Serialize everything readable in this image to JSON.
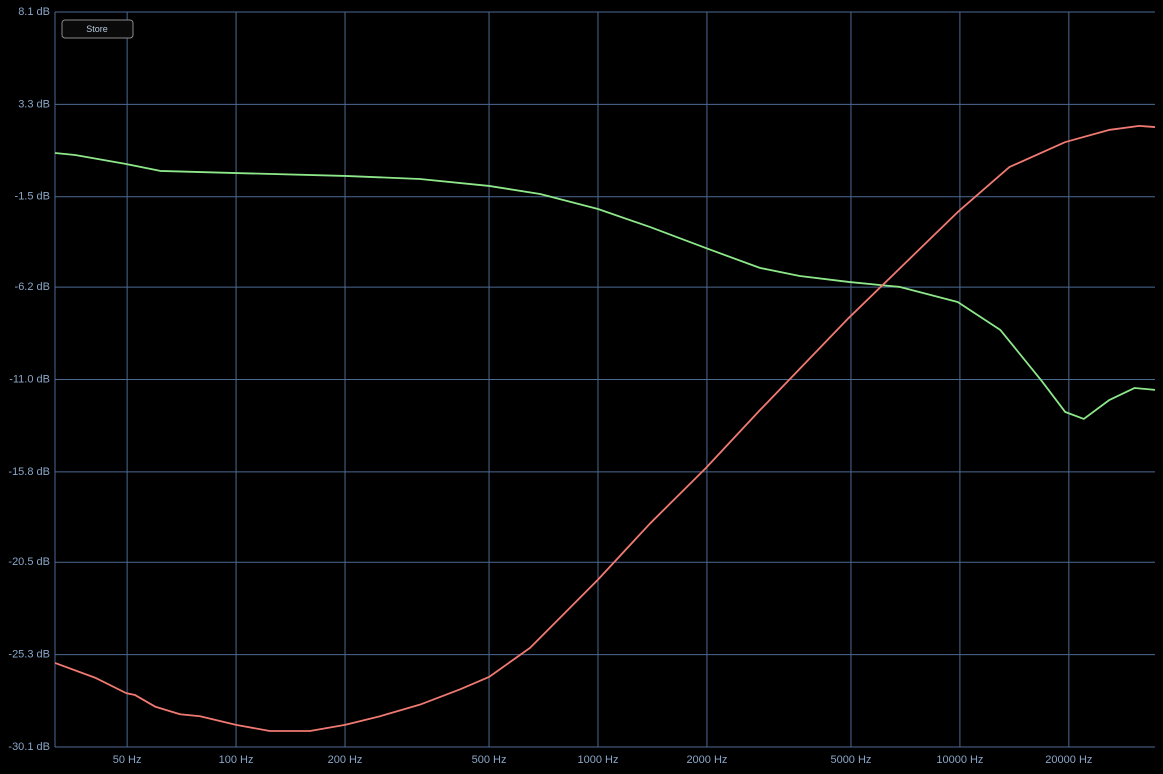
{
  "controls": {
    "store_button": "Store"
  },
  "chart_data": {
    "type": "line",
    "xscale": "log",
    "grid": true,
    "xlim": [
      31.6,
      34600
    ],
    "ylim": [
      -30.1,
      8.1
    ],
    "xticks": [
      {
        "value": 50,
        "label": "50 Hz"
      },
      {
        "value": 100,
        "label": "100 Hz"
      },
      {
        "value": 200,
        "label": "200 Hz"
      },
      {
        "value": 500,
        "label": "500 Hz"
      },
      {
        "value": 1000,
        "label": "1000 Hz"
      },
      {
        "value": 2000,
        "label": "2000 Hz"
      },
      {
        "value": 5000,
        "label": "5000 Hz"
      },
      {
        "value": 10000,
        "label": "10000 Hz"
      },
      {
        "value": 20000,
        "label": "20000 Hz"
      }
    ],
    "yticks": [
      {
        "value": 8.1,
        "label": "8.1 dB"
      },
      {
        "value": 3.3,
        "label": "3.3 dB"
      },
      {
        "value": -1.5,
        "label": "-1.5 dB"
      },
      {
        "value": -6.2,
        "label": "-6.2 dB"
      },
      {
        "value": -11.0,
        "label": "-11.0 dB"
      },
      {
        "value": -15.8,
        "label": "-15.8 dB"
      },
      {
        "value": -20.5,
        "label": "-20.5 dB"
      },
      {
        "value": -25.3,
        "label": "-25.3 dB"
      },
      {
        "value": -30.1,
        "label": "-30.1 dB"
      }
    ],
    "series": [
      {
        "color": "#8ee88a",
        "x": [
          31.6,
          35.9,
          49.7,
          61.7,
          100,
          200,
          322,
          500,
          692,
          1000,
          1391,
          1987,
          2800,
          3610,
          4930,
          6830,
          9860,
          12940,
          16740,
          19550,
          22000,
          25900,
          30400,
          34600
        ],
        "values": [
          0.77,
          0.67,
          0.2,
          -0.16,
          -0.27,
          -0.42,
          -0.58,
          -0.94,
          -1.36,
          -2.14,
          -3.07,
          -4.17,
          -5.2,
          -5.62,
          -5.93,
          -6.19,
          -6.97,
          -8.43,
          -11.02,
          -12.69,
          -13.05,
          -12.06,
          -11.44,
          -11.54
        ]
      },
      {
        "color": "#f07a72",
        "x": [
          31.6,
          40.8,
          49.7,
          52.6,
          59.7,
          70.0,
          79.5,
          100,
          124,
          160,
          200,
          250,
          322,
          416,
          500,
          649,
          1000,
          1390,
          1987,
          2800,
          4930,
          9860,
          13700,
          19550,
          25800,
          31300,
          34600
        ],
        "values": [
          -25.73,
          -26.5,
          -27.3,
          -27.4,
          -28.0,
          -28.4,
          -28.5,
          -28.95,
          -29.27,
          -29.27,
          -28.95,
          -28.5,
          -27.9,
          -27.1,
          -26.46,
          -24.95,
          -21.4,
          -18.5,
          -15.6,
          -12.6,
          -7.8,
          -2.3,
          0.04,
          1.34,
          1.97,
          2.18,
          2.12
        ]
      }
    ]
  }
}
